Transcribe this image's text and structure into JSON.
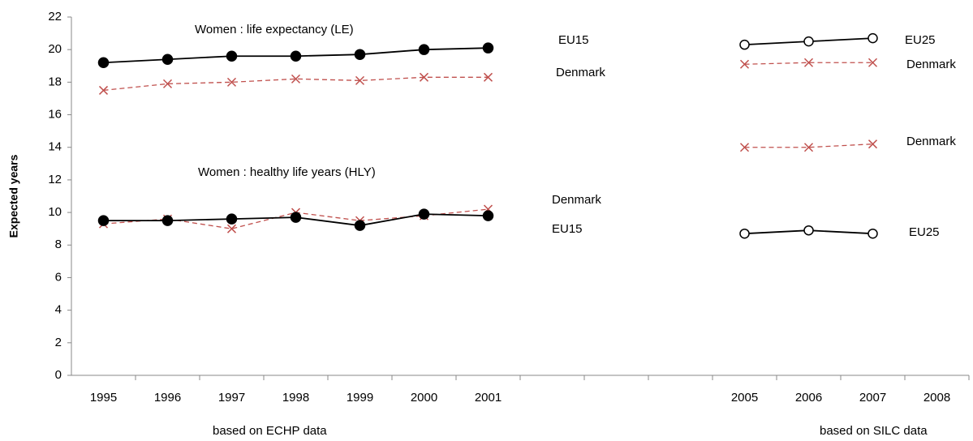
{
  "chart_data": {
    "type": "line",
    "y_label": "Expected years",
    "annotations": [
      "Women : life expectancy (LE)",
      "Women : healthy life years (HLY)",
      "based on ECHP data",
      "based on SILC data"
    ],
    "categories": [
      "1995",
      "1996",
      "1997",
      "1998",
      "1999",
      "2000",
      "2001",
      null,
      null,
      null,
      "2005",
      "2006",
      "2007",
      "2008"
    ],
    "ylim": [
      0,
      22
    ],
    "yticks": [
      0,
      2,
      4,
      6,
      8,
      10,
      12,
      14,
      16,
      18,
      20,
      22
    ],
    "grid": false,
    "series": [
      {
        "name": "EU15",
        "color": "#000000",
        "marker": "filled-circle",
        "dash": false,
        "values": [
          19.2,
          19.4,
          19.6,
          19.6,
          19.7,
          20.0,
          20.1,
          null,
          null,
          null,
          null,
          null,
          null,
          null
        ]
      },
      {
        "name": "Denmark",
        "color": "#c0504d",
        "marker": "x",
        "dash": true,
        "values": [
          17.5,
          17.9,
          18.0,
          18.2,
          18.1,
          18.3,
          18.3,
          null,
          null,
          null,
          null,
          null,
          null,
          null
        ]
      },
      {
        "name": "EU25",
        "color": "#000000",
        "marker": "open-circle",
        "dash": false,
        "values": [
          null,
          null,
          null,
          null,
          null,
          null,
          null,
          null,
          null,
          null,
          20.3,
          20.5,
          20.7,
          null
        ]
      },
      {
        "name": "Denmark",
        "color": "#c0504d",
        "marker": "x",
        "dash": true,
        "values": [
          null,
          null,
          null,
          null,
          null,
          null,
          null,
          null,
          null,
          null,
          19.1,
          19.2,
          19.2,
          null
        ]
      },
      {
        "name": "Denmark",
        "color": "#c0504d",
        "marker": "x",
        "dash": true,
        "values": [
          null,
          null,
          null,
          null,
          null,
          null,
          null,
          null,
          null,
          null,
          14.0,
          14.0,
          14.2,
          null
        ]
      },
      {
        "name": "EU25",
        "color": "#000000",
        "marker": "open-circle",
        "dash": false,
        "values": [
          null,
          null,
          null,
          null,
          null,
          null,
          null,
          null,
          null,
          null,
          8.7,
          8.9,
          8.7,
          null
        ]
      },
      {
        "name": "Denmark",
        "color": "#c0504d",
        "marker": "x",
        "dash": true,
        "values": [
          9.3,
          9.6,
          9.0,
          10.0,
          9.5,
          9.8,
          10.2,
          null,
          null,
          null,
          null,
          null,
          null,
          null
        ]
      },
      {
        "name": "EU15",
        "color": "#000000",
        "marker": "filled-circle",
        "dash": false,
        "values": [
          9.5,
          9.5,
          9.6,
          9.7,
          9.2,
          9.9,
          9.8,
          null,
          null,
          null,
          null,
          null,
          null,
          null
        ]
      }
    ]
  }
}
